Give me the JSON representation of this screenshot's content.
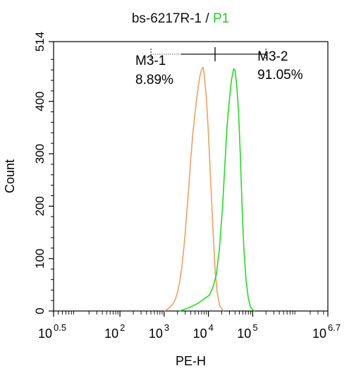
{
  "chart_data": {
    "type": "area",
    "title": "bs-6217R-1",
    "title_separator": " / ",
    "title_gate": "P1",
    "title_gate_color": "#22cc22",
    "xlabel": "PE-H",
    "ylabel": "Count",
    "x_scale": "log10",
    "xlim": [
      0.5,
      6.7
    ],
    "ylim": [
      0,
      514
    ],
    "x_ticks": [
      {
        "base": "10",
        "exp": "0.5",
        "value": 0.5
      },
      {
        "base": "10",
        "exp": "2",
        "value": 2
      },
      {
        "base": "10",
        "exp": "3",
        "value": 3
      },
      {
        "base": "10",
        "exp": "4",
        "value": 4
      },
      {
        "base": "10",
        "exp": "5",
        "value": 5
      },
      {
        "base": "10",
        "exp": "6.7",
        "value": 6.7
      }
    ],
    "y_ticks": [
      "0",
      "100",
      "200",
      "300",
      "400",
      "514"
    ],
    "y_tick_values": [
      0,
      100,
      200,
      300,
      400,
      514
    ],
    "series": [
      {
        "color": "#f0a060",
        "points": [
          [
            3.0,
            0
          ],
          [
            3.05,
            2
          ],
          [
            3.1,
            5
          ],
          [
            3.15,
            9
          ],
          [
            3.2,
            14
          ],
          [
            3.25,
            22
          ],
          [
            3.3,
            35
          ],
          [
            3.35,
            55
          ],
          [
            3.4,
            85
          ],
          [
            3.45,
            125
          ],
          [
            3.5,
            175
          ],
          [
            3.55,
            230
          ],
          [
            3.6,
            290
          ],
          [
            3.65,
            340
          ],
          [
            3.7,
            380
          ],
          [
            3.75,
            415
          ],
          [
            3.8,
            445
          ],
          [
            3.85,
            462
          ],
          [
            3.88,
            465
          ],
          [
            3.9,
            455
          ],
          [
            3.95,
            410
          ],
          [
            4.0,
            340
          ],
          [
            4.05,
            250
          ],
          [
            4.1,
            160
          ],
          [
            4.15,
            80
          ],
          [
            4.2,
            35
          ],
          [
            4.25,
            12
          ],
          [
            4.3,
            4
          ],
          [
            4.35,
            0
          ]
        ]
      },
      {
        "color": "#22dd22",
        "points": [
          [
            3.35,
            0
          ],
          [
            3.45,
            3
          ],
          [
            3.55,
            6
          ],
          [
            3.65,
            10
          ],
          [
            3.75,
            14
          ],
          [
            3.85,
            20
          ],
          [
            3.95,
            26
          ],
          [
            4.02,
            30
          ],
          [
            4.1,
            45
          ],
          [
            4.18,
            70
          ],
          [
            4.25,
            120
          ],
          [
            4.32,
            200
          ],
          [
            4.38,
            290
          ],
          [
            4.42,
            350
          ],
          [
            4.47,
            400
          ],
          [
            4.52,
            440
          ],
          [
            4.57,
            462
          ],
          [
            4.6,
            460
          ],
          [
            4.64,
            430
          ],
          [
            4.68,
            380
          ],
          [
            4.72,
            300
          ],
          [
            4.76,
            200
          ],
          [
            4.8,
            120
          ],
          [
            4.85,
            60
          ],
          [
            4.9,
            25
          ],
          [
            4.95,
            8
          ],
          [
            5.0,
            2
          ],
          [
            5.05,
            0
          ]
        ]
      }
    ],
    "gates": [
      {
        "name": "M3-1",
        "percent": "8.89%",
        "x_start": 2.7,
        "x_end": 4.15,
        "y": 490
      },
      {
        "name": "M3-2",
        "percent": "91.05%",
        "x_start": 4.15,
        "x_end": 5.3,
        "y": 490
      }
    ]
  }
}
